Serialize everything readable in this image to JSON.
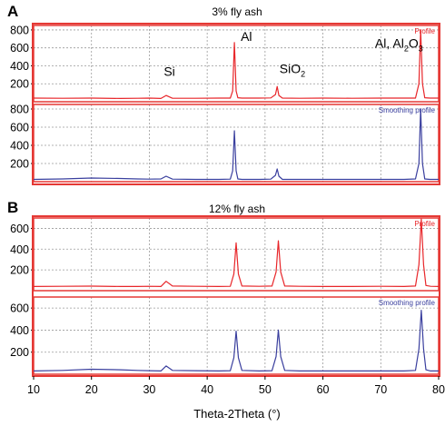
{
  "figure": {
    "xaxis_label": "Theta-2Theta (°)",
    "x_ticks": [
      10,
      20,
      30,
      40,
      50,
      60,
      70,
      80
    ],
    "colors": {
      "profile": "#e8262a",
      "smoothing": "#3a3f9e",
      "frame": "#e53935",
      "grid": "#9a9a9a"
    }
  },
  "chart_data": [
    {
      "type": "line",
      "panel_letter": "A",
      "title": "3% fly ash",
      "series": [
        {
          "name": "Profile",
          "ylim": [
            0,
            850
          ],
          "y_ticks": [
            200,
            400,
            600,
            800
          ],
          "x": [
            10,
            15,
            20,
            25,
            28,
            30,
            32,
            32.9,
            34,
            38,
            42,
            44,
            44.4,
            44.7,
            45.0,
            45.3,
            46,
            49,
            51,
            51.8,
            52.1,
            52.4,
            53,
            56,
            60,
            65,
            70,
            74,
            76,
            76.6,
            76.9,
            77.2,
            77.6,
            78.5,
            80
          ],
          "values": [
            40,
            38,
            40,
            36,
            38,
            40,
            36,
            70,
            38,
            38,
            40,
            40,
            120,
            660,
            120,
            45,
            40,
            40,
            42,
            80,
            170,
            70,
            40,
            38,
            40,
            38,
            40,
            40,
            40,
            200,
            800,
            200,
            45,
            40,
            40
          ]
        },
        {
          "name": "Smoothing profile",
          "ylim": [
            0,
            850
          ],
          "y_ticks": [
            200,
            400,
            600,
            800
          ],
          "x": [
            10,
            15,
            20,
            25,
            28,
            30,
            32,
            32.9,
            34,
            38,
            42,
            44,
            44.4,
            44.7,
            45.0,
            45.3,
            46,
            49,
            51,
            51.8,
            52.1,
            52.4,
            53,
            56,
            60,
            65,
            70,
            74,
            76,
            76.6,
            76.9,
            77.2,
            77.6,
            78.5,
            80
          ],
          "values": [
            25,
            30,
            40,
            35,
            30,
            28,
            30,
            60,
            28,
            25,
            25,
            28,
            120,
            560,
            120,
            30,
            25,
            25,
            28,
            70,
            140,
            60,
            25,
            25,
            25,
            25,
            25,
            25,
            30,
            200,
            800,
            200,
            30,
            25,
            25
          ]
        }
      ],
      "annotations": [
        {
          "text": "Si",
          "x": 32.5,
          "y": 290
        },
        {
          "text": "Al",
          "x": 45.8,
          "y": 680
        },
        {
          "text": "SiO",
          "sub": "2",
          "x": 52.5,
          "y": 320
        },
        {
          "text": "Al, Al",
          "sub": "2",
          "tail": "O",
          "sub2": "3",
          "x": 69,
          "y": 600
        }
      ]
    },
    {
      "type": "line",
      "panel_letter": "B",
      "title": "12% fly ash",
      "series": [
        {
          "name": "Profile",
          "ylim": [
            0,
            700
          ],
          "y_ticks": [
            200,
            400,
            600
          ],
          "x": [
            10,
            15,
            20,
            25,
            28,
            30,
            32,
            32.9,
            34,
            38,
            42,
            44,
            44.6,
            45.0,
            45.4,
            46,
            49,
            51.2,
            51.9,
            52.3,
            52.7,
            53.4,
            56,
            60,
            65,
            70,
            74,
            76,
            76.6,
            77.0,
            77.4,
            77.8,
            78.6,
            80
          ],
          "values": [
            40,
            42,
            44,
            40,
            40,
            42,
            40,
            90,
            45,
            42,
            40,
            42,
            160,
            460,
            160,
            45,
            42,
            45,
            180,
            480,
            180,
            45,
            42,
            40,
            40,
            42,
            40,
            45,
            250,
            690,
            250,
            50,
            42,
            40
          ]
        },
        {
          "name": "Smoothing profile",
          "ylim": [
            0,
            700
          ],
          "y_ticks": [
            200,
            400,
            600
          ],
          "x": [
            10,
            15,
            20,
            25,
            28,
            30,
            32,
            32.9,
            34,
            38,
            42,
            44,
            44.6,
            45.0,
            45.4,
            46,
            49,
            51.2,
            51.9,
            52.3,
            52.7,
            53.4,
            56,
            60,
            65,
            70,
            74,
            76,
            76.6,
            77.0,
            77.4,
            77.8,
            78.6,
            80
          ],
          "values": [
            30,
            35,
            45,
            40,
            35,
            32,
            30,
            75,
            35,
            32,
            30,
            32,
            150,
            390,
            150,
            35,
            30,
            32,
            160,
            400,
            160,
            35,
            30,
            30,
            30,
            30,
            30,
            35,
            230,
            580,
            230,
            40,
            30,
            30
          ]
        }
      ],
      "annotations": []
    }
  ]
}
